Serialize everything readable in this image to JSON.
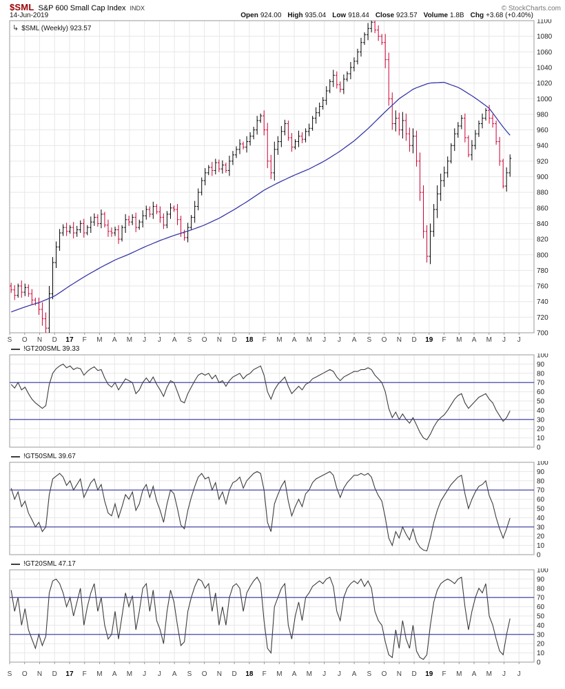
{
  "header": {
    "symbol": "$SML",
    "name": "S&P 600 Small Cap Index",
    "exchange": "INDX",
    "date": "14-Jun-2019",
    "copyright": "© StockCharts.com",
    "quote": [
      {
        "label": "Open",
        "value": "924.00"
      },
      {
        "label": "High",
        "value": "935.04"
      },
      {
        "label": "Low",
        "value": "918.44"
      },
      {
        "label": "Close",
        "value": "923.57"
      },
      {
        "label": "Volume",
        "value": "1.8B"
      },
      {
        "label": "Chg",
        "value": "+3.68 (+0.40%)"
      }
    ]
  },
  "legend": {
    "icon": "↳",
    "label": "$SML (Weekly) 923.57"
  },
  "colors": {
    "symbol": "#990000",
    "up": "#000000",
    "down": "#cc0033",
    "ma": "#3838a8",
    "refline": "#3333a0",
    "line": "#3c3c3c",
    "grid": "#e7e7e7",
    "border": "#9a9a9a",
    "tick_text": "#222222",
    "month_text": "#444444",
    "year_text": "#000000"
  },
  "chart_data": [
    {
      "type": "ohlc",
      "name": "$SML weekly price",
      "timeframe": "Weekly",
      "last": 923.57,
      "ylim": [
        700,
        1100
      ],
      "ytick": 20,
      "x_axis": {
        "labels": [
          "S",
          "O",
          "N",
          "D",
          "17",
          "F",
          "M",
          "A",
          "M",
          "J",
          "J",
          "A",
          "S",
          "O",
          "N",
          "D",
          "18",
          "F",
          "M",
          "A",
          "M",
          "J",
          "J",
          "A",
          "S",
          "O",
          "N",
          "D",
          "19",
          "F",
          "M",
          "A",
          "M",
          "J",
          "J"
        ]
      },
      "first_open": 760,
      "closes": [
        755,
        748,
        760,
        752,
        758,
        750,
        742,
        738,
        730,
        718,
        706,
        750,
        790,
        810,
        828,
        835,
        830,
        835,
        828,
        832,
        840,
        828,
        835,
        842,
        848,
        840,
        852,
        838,
        830,
        828,
        832,
        820,
        835,
        845,
        842,
        848,
        835,
        842,
        850,
        858,
        852,
        862,
        855,
        848,
        838,
        852,
        860,
        858,
        845,
        828,
        822,
        835,
        848,
        862,
        880,
        895,
        905,
        912,
        908,
        918,
        910,
        915,
        908,
        920,
        928,
        935,
        942,
        938,
        945,
        952,
        960,
        972,
        978,
        960,
        920,
        905,
        935,
        945,
        958,
        968,
        950,
        938,
        945,
        952,
        948,
        958,
        962,
        975,
        982,
        990,
        998,
        1010,
        1022,
        1030,
        1018,
        1012,
        1025,
        1032,
        1040,
        1048,
        1060,
        1072,
        1082,
        1090,
        1098,
        1088,
        1080,
        1072,
        1050,
        1000,
        968,
        975,
        960,
        972,
        955,
        940,
        952,
        920,
        880,
        830,
        798,
        830,
        858,
        878,
        895,
        905,
        920,
        940,
        955,
        965,
        975,
        950,
        928,
        940,
        955,
        968,
        975,
        985,
        975,
        968,
        945,
        920,
        888,
        905,
        923.57
      ],
      "hl_base_pattern": [
        4,
        6,
        3,
        7,
        5
      ],
      "volatile_ranges": [
        [
          9,
          12
        ],
        [
          74,
          77
        ],
        [
          108,
          125
        ]
      ],
      "volatile_extra": 4,
      "ma": {
        "period": 40,
        "monthly_values": [
          726,
          733,
          739,
          747,
          760,
          772,
          783,
          793,
          801,
          810,
          818,
          825,
          831,
          838,
          847,
          858,
          870,
          883,
          893,
          902,
          910,
          920,
          932,
          946,
          963,
          982,
          1000,
          1013,
          1020,
          1021,
          1014,
          1002,
          988,
          962,
          940
        ]
      }
    },
    {
      "type": "line",
      "label": "!GT200SML 39.33",
      "last": 39.33,
      "ylim": [
        0,
        100
      ],
      "ytick": 10,
      "reflines": [
        30,
        70
      ],
      "values": [
        68,
        64,
        70,
        62,
        65,
        58,
        52,
        48,
        45,
        42,
        45,
        68,
        80,
        85,
        88,
        90,
        86,
        88,
        84,
        86,
        85,
        78,
        82,
        85,
        87,
        83,
        84,
        75,
        68,
        65,
        70,
        62,
        68,
        74,
        72,
        70,
        58,
        62,
        70,
        75,
        70,
        76,
        68,
        62,
        55,
        65,
        72,
        70,
        60,
        50,
        48,
        58,
        65,
        72,
        78,
        80,
        78,
        80,
        74,
        78,
        70,
        72,
        66,
        72,
        76,
        78,
        80,
        74,
        78,
        80,
        84,
        86,
        88,
        78,
        60,
        52,
        62,
        68,
        72,
        76,
        66,
        58,
        62,
        66,
        62,
        68,
        70,
        74,
        76,
        78,
        80,
        82,
        84,
        82,
        76,
        72,
        76,
        78,
        80,
        82,
        82,
        84,
        84,
        86,
        84,
        78,
        74,
        70,
        60,
        42,
        32,
        38,
        30,
        36,
        30,
        26,
        32,
        24,
        16,
        10,
        8,
        14,
        22,
        28,
        32,
        35,
        40,
        46,
        52,
        56,
        58,
        48,
        42,
        46,
        50,
        54,
        56,
        58,
        52,
        48,
        40,
        34,
        28,
        32,
        39.33
      ]
    },
    {
      "type": "line",
      "label": "!GT50SML 39.67",
      "last": 39.67,
      "ylim": [
        0,
        100
      ],
      "ytick": 10,
      "reflines": [
        30,
        70
      ],
      "values": [
        72,
        60,
        68,
        52,
        58,
        45,
        38,
        30,
        35,
        25,
        30,
        65,
        82,
        85,
        88,
        84,
        75,
        80,
        70,
        76,
        82,
        62,
        70,
        78,
        82,
        70,
        76,
        58,
        45,
        42,
        55,
        40,
        52,
        65,
        60,
        68,
        48,
        55,
        70,
        76,
        62,
        74,
        58,
        48,
        35,
        55,
        70,
        66,
        50,
        32,
        28,
        48,
        62,
        74,
        84,
        88,
        82,
        84,
        70,
        78,
        60,
        68,
        55,
        70,
        78,
        80,
        84,
        72,
        80,
        84,
        88,
        90,
        88,
        70,
        35,
        25,
        55,
        65,
        74,
        80,
        58,
        42,
        52,
        60,
        52,
        66,
        70,
        78,
        82,
        84,
        86,
        88,
        90,
        86,
        72,
        62,
        72,
        78,
        82,
        86,
        86,
        88,
        86,
        88,
        84,
        72,
        64,
        58,
        40,
        18,
        10,
        25,
        18,
        30,
        22,
        16,
        28,
        14,
        8,
        5,
        4,
        18,
        35,
        48,
        58,
        64,
        70,
        76,
        80,
        84,
        86,
        66,
        50,
        60,
        68,
        74,
        76,
        80,
        64,
        55,
        40,
        28,
        18,
        28,
        39.67
      ]
    },
    {
      "type": "line",
      "label": "!GT20SML 47.17",
      "last": 47.17,
      "ylim": [
        0,
        100
      ],
      "ytick": 10,
      "reflines": [
        30,
        70
      ],
      "values": [
        78,
        55,
        70,
        40,
        58,
        35,
        25,
        15,
        30,
        18,
        28,
        75,
        88,
        90,
        85,
        75,
        60,
        70,
        50,
        65,
        80,
        40,
        60,
        75,
        85,
        55,
        70,
        40,
        25,
        30,
        55,
        25,
        50,
        75,
        60,
        72,
        35,
        55,
        80,
        85,
        55,
        78,
        45,
        35,
        20,
        55,
        78,
        65,
        40,
        18,
        22,
        55,
        70,
        82,
        90,
        88,
        80,
        85,
        55,
        75,
        40,
        60,
        40,
        70,
        82,
        85,
        80,
        55,
        75,
        82,
        88,
        92,
        85,
        45,
        15,
        10,
        60,
        70,
        80,
        85,
        40,
        25,
        50,
        65,
        45,
        70,
        75,
        82,
        85,
        88,
        85,
        90,
        92,
        82,
        55,
        45,
        70,
        80,
        85,
        88,
        85,
        90,
        82,
        88,
        80,
        55,
        45,
        40,
        22,
        8,
        5,
        35,
        15,
        45,
        25,
        15,
        40,
        12,
        5,
        3,
        8,
        40,
        65,
        78,
        85,
        88,
        90,
        88,
        85,
        90,
        92,
        60,
        35,
        55,
        70,
        80,
        75,
        85,
        50,
        40,
        25,
        12,
        8,
        30,
        47.17
      ]
    }
  ]
}
